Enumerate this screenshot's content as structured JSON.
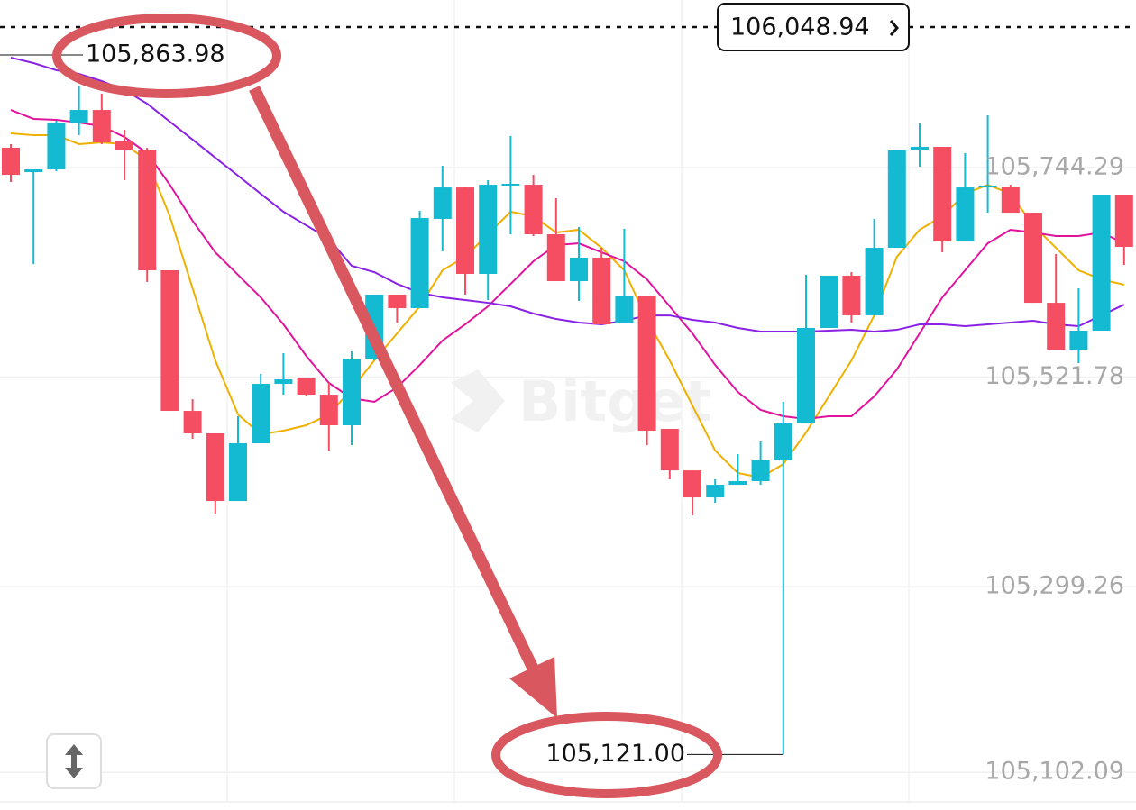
{
  "chart_data": {
    "type": "candlestick",
    "watermark": "Bitget",
    "categories": [
      null,
      null,
      null,
      null,
      null,
      null,
      null,
      null,
      null,
      null,
      null,
      null,
      null,
      null,
      null,
      null,
      null,
      null,
      null,
      null,
      null,
      null,
      null,
      null,
      null,
      null,
      null,
      null,
      null,
      null,
      null,
      null,
      null,
      null,
      null,
      null,
      null,
      null,
      null,
      null,
      null,
      null,
      null,
      null,
      null,
      null,
      null,
      null,
      null,
      null
    ],
    "open": [
      105765.4,
      105739.5,
      105742.4,
      105792.2,
      105805.5,
      105772.1,
      105763.4,
      105635.2,
      105485.9,
      105462.0,
      105390.2,
      105451.5,
      105514.6,
      105520.4,
      105503.1,
      105470.6,
      105541.4,
      105609.4,
      105595.0,
      105689.8,
      105723.2,
      105631.4,
      105725.2,
      105726.1,
      105673.5,
      105623.7,
      105648.6,
      105579.7,
      105608.4,
      105466.8,
      105422.7,
      105394.0,
      105407.4,
      105411.3,
      105434.2,
      105472.5,
      105574.0,
      105629.5,
      105587.4,
      105659.1,
      105763.4,
      105766.3,
      105665.8,
      105723.2,
      105724.2,
      105696.4,
      105600.7,
      105551.0,
      105571.1,
      105715.6
    ],
    "high": [
      105769.2,
      105742.4,
      105794.1,
      105830.4,
      105822.8,
      105784.5,
      105765.4,
      105635.2,
      105498.3,
      105462.0,
      105480.2,
      105525.1,
      105547.2,
      105520.4,
      105515.6,
      105549.1,
      105609.4,
      105609.4,
      105698.4,
      105746.2,
      105723.2,
      105730.9,
      105777.8,
      105736.6,
      105711.8,
      105681.1,
      105659.1,
      105679.2,
      105608.4,
      105466.8,
      105422.7,
      105413.2,
      105440.0,
      105453.4,
      105495.5,
      105630.4,
      105629.5,
      105633.3,
      105689.8,
      105762.5,
      105791.2,
      105766.3,
      105759.6,
      105799.8,
      105726.1,
      105696.4,
      105652.4,
      105616.1,
      105715.6,
      105715.6
    ],
    "low": [
      105729.0,
      105641.9,
      105740.5,
      105778.8,
      105769.2,
      105730.9,
      105622.8,
      105485.9,
      105456.2,
      105376.8,
      105390.2,
      105451.5,
      105503.1,
      105501.2,
      105443.8,
      105449.5,
      105539.5,
      105579.7,
      105595.0,
      105655.3,
      105609.4,
      105603.6,
      105673.5,
      105671.6,
      105623.7,
      105602.7,
      105577.8,
      105579.7,
      105449.5,
      105413.2,
      105374.9,
      105388.3,
      105407.4,
      105407.4,
      105121.0,
      105472.5,
      105574.0,
      105579.7,
      105587.4,
      105659.1,
      105745.3,
      105654.3,
      105665.8,
      105696.4,
      105696.4,
      105600.7,
      105551.0,
      105536.6,
      105571.1,
      105640.9
    ],
    "close": [
      105736.6,
      105742.4,
      105792.2,
      105805.5,
      105771.1,
      105763.4,
      105635.2,
      105485.9,
      105462.0,
      105390.2,
      105451.5,
      105514.6,
      105519.4,
      105503.1,
      105470.6,
      105541.4,
      105609.4,
      105595.0,
      105690.7,
      105723.2,
      105631.4,
      105726.1,
      105727.1,
      105673.5,
      105623.7,
      105648.6,
      105577.8,
      105608.4,
      105464.9,
      105422.7,
      105394.0,
      105407.4,
      105411.3,
      105434.2,
      105472.5,
      105574.0,
      105629.5,
      105587.4,
      105659.1,
      105762.5,
      105766.3,
      105665.8,
      105723.2,
      105725.2,
      105696.4,
      105600.7,
      105551.0,
      105571.1,
      105715.6,
      105660.1
    ],
    "up_color": "#14b9d2",
    "down_color": "#f54d62",
    "series": [
      {
        "color": "#f0b000",
        "values": [
          105780.7,
          105778.7,
          105778.7,
          105769.2,
          105771.1,
          105769.2,
          105752.0,
          105692.6,
          105616.1,
          105539.5,
          105482.1,
          105461.0,
          105464.9,
          105470.6,
          105482.1,
          105508.9,
          105539.5,
          105568.2,
          105596.9,
          105635.2,
          105649.6,
          105673.5,
          105697.4,
          105692.6,
          105675.4,
          105678.3,
          105659.1,
          105635.2,
          105582.6,
          105539.5,
          105491.6,
          105443.8,
          105419.9,
          105415.1,
          105429.4,
          105462.9,
          105501.2,
          105539.5,
          105587.3,
          105649.6,
          105678.3,
          105692.6,
          105716.5,
          105726.1,
          105716.5,
          105683.0,
          105659.1,
          105635.2,
          105625.6,
          105619.9
        ]
      },
      {
        "color": "#e0139c",
        "values": [
          105805.5,
          105796.0,
          105795.0,
          105792.1,
          105788.3,
          105776.8,
          105759.6,
          105726.1,
          105687.8,
          105654.3,
          105630.4,
          105606.5,
          105577.8,
          105544.3,
          105515.6,
          105499.3,
          105495.5,
          105510.8,
          105534.7,
          105560.6,
          105577.8,
          105596.9,
          105620.8,
          105644.8,
          105662.0,
          105663.9,
          105654.3,
          105644.8,
          105625.6,
          105596.9,
          105568.2,
          105534.7,
          105506.0,
          105486.9,
          105480.2,
          105477.3,
          105480.2,
          105480.2,
          105501.2,
          105529.9,
          105568.2,
          105606.5,
          105635.2,
          105663.9,
          105678.3,
          105675.4,
          105671.6,
          105671.6,
          105675.4,
          105663.9
        ]
      },
      {
        "color": "#8a22e6",
        "values": [
          105861.1,
          105855.3,
          105847.7,
          105843.8,
          105836.2,
          105826.6,
          105812.2,
          105793.1,
          105774.0,
          105754.8,
          105735.7,
          105716.5,
          105697.4,
          105683.0,
          105668.7,
          105640.0,
          105633.3,
          105620.8,
          105611.3,
          105606.5,
          105603.6,
          105600.7,
          105596.9,
          105589.3,
          105583.5,
          105579.7,
          105577.8,
          105581.6,
          105587.3,
          105587.3,
          105582.6,
          105579.7,
          105574.0,
          105570.1,
          105570.1,
          105570.1,
          105571.1,
          105572.0,
          105570.1,
          105572.0,
          105577.8,
          105577.8,
          105575.9,
          105577.8,
          105579.7,
          105581.6,
          105577.8,
          105575.9,
          105587.3,
          105598.8
        ]
      }
    ],
    "ylim": [
      105062.0,
      105922.3
    ],
    "yticks": [
      {
        "value": 105744.29,
        "label": "105,744.29"
      },
      {
        "value": 105521.78,
        "label": "105,521.78"
      },
      {
        "value": 105299.26,
        "label": "105,299.26"
      },
      {
        "value": 105102.09,
        "label": "105,102.09"
      }
    ],
    "grid": true,
    "annotations": {
      "max": {
        "value": 105863.98,
        "label": "105,863.98"
      },
      "min": {
        "value": 105121.0,
        "label": "105,121.00"
      },
      "last_price": {
        "value": 106048.94,
        "label": "106,048.94"
      }
    }
  }
}
